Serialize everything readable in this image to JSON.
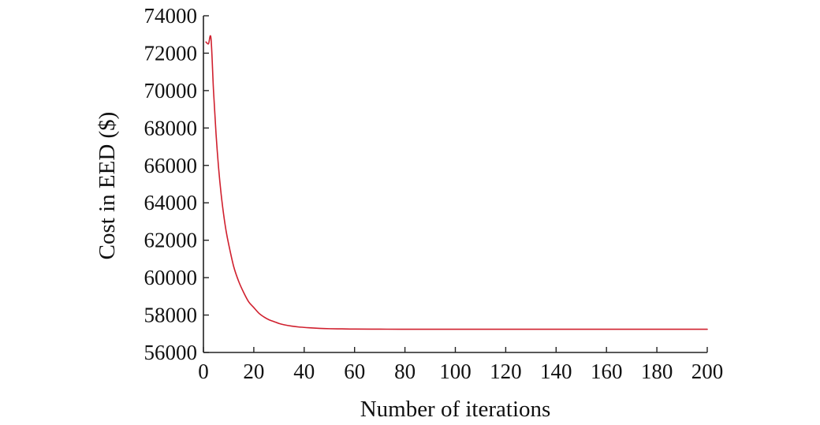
{
  "chart_data": {
    "type": "line",
    "title": "",
    "xlabel": "Number of iterations",
    "ylabel": "Cost in EED ($)",
    "xlim": [
      0,
      200
    ],
    "ylim": [
      56000,
      74000
    ],
    "xticks": [
      0,
      20,
      40,
      60,
      80,
      100,
      120,
      140,
      160,
      180,
      200
    ],
    "yticks": [
      56000,
      58000,
      60000,
      62000,
      64000,
      66000,
      68000,
      70000,
      72000,
      74000
    ],
    "grid": false,
    "legend": "none",
    "series": [
      {
        "color": "#d0202e",
        "x": [
          1,
          2,
          3,
          4,
          5,
          6,
          7,
          8,
          9,
          10,
          12,
          14,
          16,
          18,
          20,
          22,
          24,
          26,
          28,
          30,
          32,
          35,
          38,
          42,
          46,
          50,
          55,
          60,
          70,
          80,
          100,
          120,
          140,
          160,
          180,
          200
        ],
        "y": [
          72600,
          72500,
          72800,
          70000,
          67700,
          65900,
          64500,
          63400,
          62500,
          61800,
          60600,
          59800,
          59200,
          58700,
          58400,
          58100,
          57900,
          57750,
          57650,
          57550,
          57480,
          57410,
          57360,
          57320,
          57290,
          57270,
          57260,
          57250,
          57245,
          57240,
          57240,
          57240,
          57240,
          57240,
          57240,
          57240
        ]
      }
    ]
  }
}
